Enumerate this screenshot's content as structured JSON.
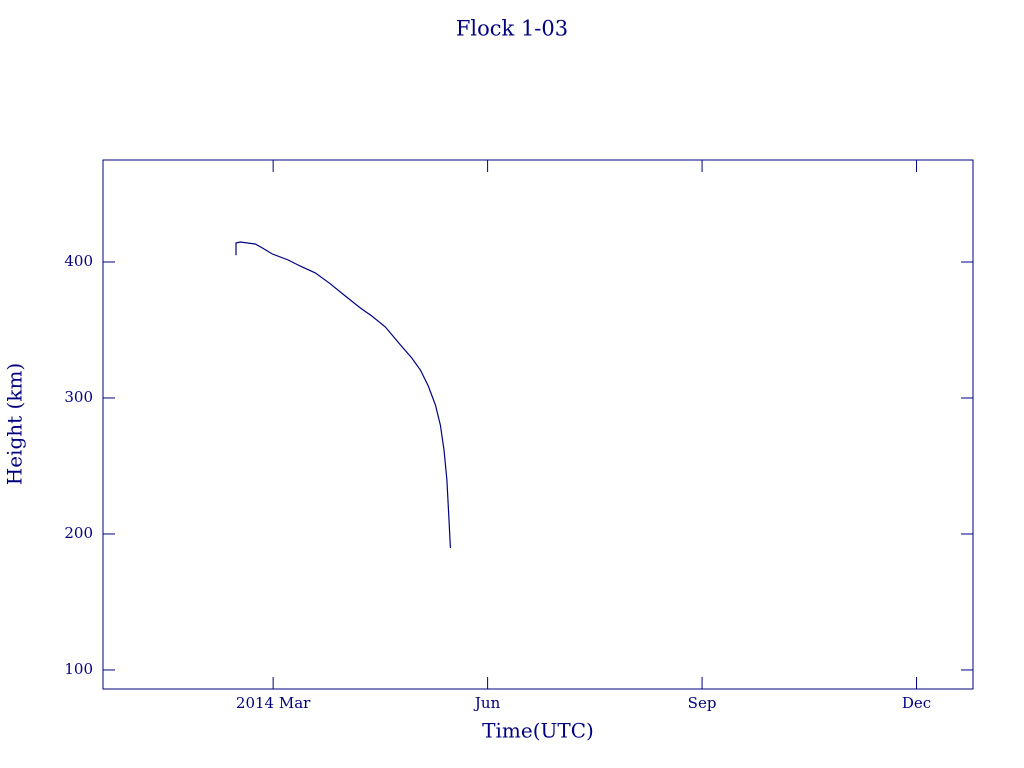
{
  "chart_data": {
    "type": "line",
    "title": "Flock 1-03",
    "x_label": "Time(UTC)",
    "y_label": "Height (km)",
    "x": [
      2.48,
      2.48,
      2.54,
      2.75,
      2.85,
      2.99,
      3.21,
      3.38,
      3.59,
      3.8,
      4.01,
      4.22,
      4.38,
      4.57,
      4.78,
      4.94,
      5.06,
      5.17,
      5.27,
      5.34,
      5.39,
      5.43,
      5.46,
      5.48
    ],
    "values": [
      405,
      414,
      414.7,
      413.2,
      410.3,
      405.9,
      401.5,
      397,
      392,
      384,
      375,
      366.2,
      360.3,
      352.2,
      339,
      329.4,
      320.6,
      308.8,
      294.9,
      280,
      261.8,
      239.7,
      210.3,
      189.7
    ],
    "color": "#00007f",
    "xlim": [
      0.62,
      12.79
    ],
    "xticks": [
      {
        "value": 3,
        "label": "2014 Mar"
      },
      {
        "value": 6,
        "label": "Jun"
      },
      {
        "value": 9,
        "label": "Sep"
      },
      {
        "value": 12,
        "label": "Dec"
      }
    ],
    "ylim": [
      86,
      475
    ],
    "yticks": [
      100,
      200,
      300,
      400
    ]
  }
}
